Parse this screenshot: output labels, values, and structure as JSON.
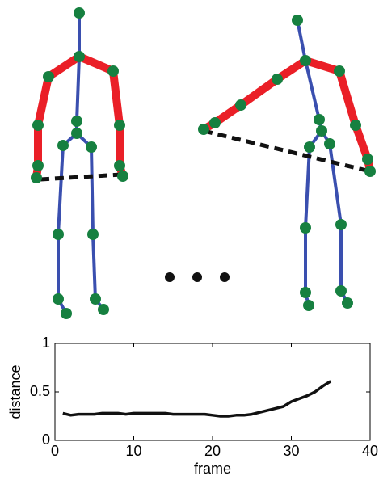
{
  "chart_data": {
    "type": "line",
    "x_label": "frame",
    "y_label": "distance",
    "x": [
      1,
      2,
      3,
      4,
      5,
      6,
      7,
      8,
      9,
      10,
      11,
      12,
      13,
      14,
      15,
      16,
      17,
      18,
      19,
      20,
      21,
      22,
      23,
      24,
      25,
      26,
      27,
      28,
      29,
      30,
      31,
      32,
      33,
      34,
      35
    ],
    "values": [
      0.28,
      0.26,
      0.27,
      0.27,
      0.27,
      0.28,
      0.28,
      0.28,
      0.27,
      0.28,
      0.28,
      0.28,
      0.28,
      0.28,
      0.27,
      0.27,
      0.27,
      0.27,
      0.27,
      0.26,
      0.25,
      0.25,
      0.26,
      0.26,
      0.27,
      0.29,
      0.31,
      0.33,
      0.35,
      0.4,
      0.43,
      0.46,
      0.5,
      0.56,
      0.61
    ],
    "color": "#111111",
    "xlim": [
      0,
      40
    ],
    "xticks": [
      0,
      10,
      20,
      30,
      40
    ],
    "ylim": [
      0,
      1
    ],
    "yticks": [
      0,
      0.5,
      1
    ]
  }
}
